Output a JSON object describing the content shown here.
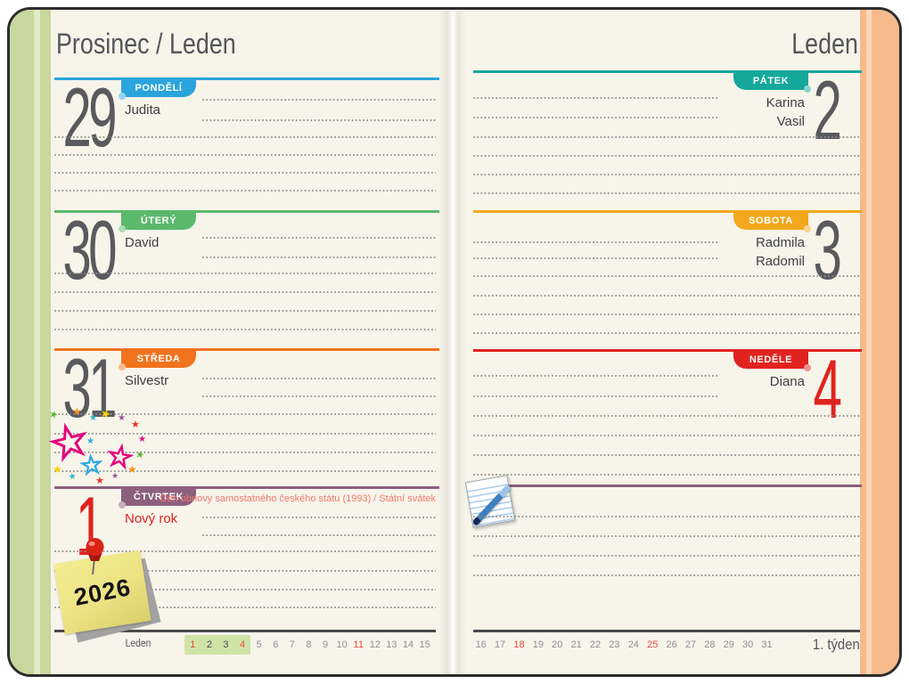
{
  "left_page": {
    "title": "Prosinec / Leden",
    "days": [
      {
        "number": "29",
        "weekday": "PONDĚLÍ",
        "names": [
          "Judita"
        ],
        "color": "#2aa4dc",
        "number_red": false
      },
      {
        "number": "30",
        "weekday": "ÚTERÝ",
        "names": [
          "David"
        ],
        "color": "#5bb96b",
        "number_red": false
      },
      {
        "number": "31",
        "weekday": "STŘEDA",
        "names": [
          "Silvestr"
        ],
        "color": "#f0731e",
        "number_red": false
      },
      {
        "number": "1",
        "weekday": "ČTVRTEK",
        "names": [
          "Nový rok"
        ],
        "color": "#8d5f7e",
        "number_red": true,
        "names_red": true,
        "holiday_note": "Den obnovy samostatného českého státu (1993) / Státní svátek"
      }
    ],
    "mini_calendar": {
      "month_label": "Leden",
      "days": [
        {
          "value": "1",
          "red": true,
          "week": true
        },
        {
          "value": "2",
          "dark": true,
          "week": true
        },
        {
          "value": "3",
          "dark": true,
          "week": true
        },
        {
          "value": "4",
          "red": true,
          "week": true
        },
        {
          "value": "5"
        },
        {
          "value": "6"
        },
        {
          "value": "7"
        },
        {
          "value": "8"
        },
        {
          "value": "9"
        },
        {
          "value": "10"
        },
        {
          "value": "11",
          "red": true
        },
        {
          "value": "12"
        },
        {
          "value": "13"
        },
        {
          "value": "14"
        },
        {
          "value": "15"
        }
      ]
    }
  },
  "right_page": {
    "title": "Leden",
    "days": [
      {
        "number": "2",
        "weekday": "PÁTEK",
        "names": [
          "Karina",
          "Vasil"
        ],
        "color": "#14a89b",
        "number_red": false
      },
      {
        "number": "3",
        "weekday": "SOBOTA",
        "names": [
          "Radmila",
          "Radomil"
        ],
        "color": "#f3a71d",
        "number_red": false
      },
      {
        "number": "4",
        "weekday": "NEDĚLE",
        "names": [
          "Diana"
        ],
        "color": "#e0231f",
        "number_red": true
      }
    ],
    "notes_color": "#8d5f7e",
    "mini_calendar": {
      "days": [
        {
          "value": "16"
        },
        {
          "value": "17"
        },
        {
          "value": "18",
          "red": true
        },
        {
          "value": "19"
        },
        {
          "value": "20"
        },
        {
          "value": "21"
        },
        {
          "value": "22"
        },
        {
          "value": "23"
        },
        {
          "value": "24"
        },
        {
          "value": "25",
          "red": true
        },
        {
          "value": "26"
        },
        {
          "value": "27"
        },
        {
          "value": "28"
        },
        {
          "value": "29"
        },
        {
          "value": "30"
        },
        {
          "value": "31"
        }
      ],
      "week_label": "1. týden"
    }
  },
  "decorations": {
    "sticky_note_year": "2026",
    "icons": [
      "pushpin-icon",
      "sticky-note",
      "confetti-stars-decoration",
      "notepad-pen-icon"
    ]
  },
  "colors": {
    "page_background": "#f7f4ea",
    "left_cover_band": "#c8d79e",
    "right_cover_band": "#f6ba8d",
    "title_text": "#55565a",
    "day_number": "#595a5e",
    "red_day": "#e0231f",
    "holiday_text": "#f2796c",
    "mini_calendar_red": "#e8483b",
    "week_highlight_box": "#cfe3a6"
  }
}
